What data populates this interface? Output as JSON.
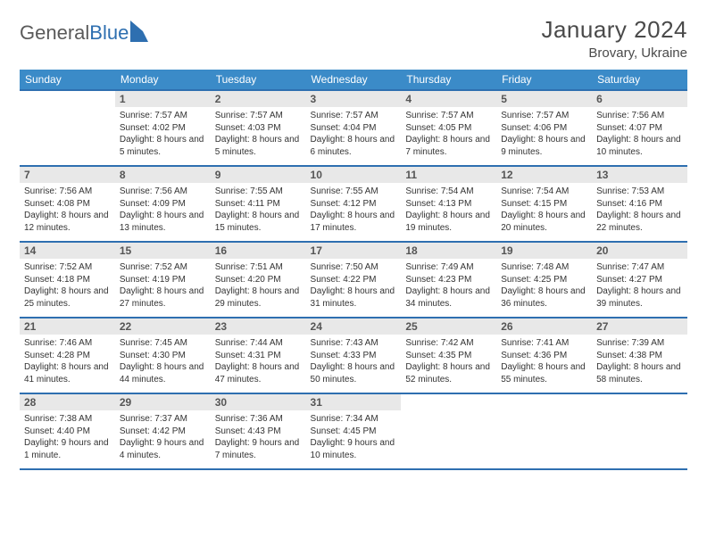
{
  "logo": {
    "text1": "General",
    "text2": "Blue"
  },
  "title": "January 2024",
  "location": "Brovary, Ukraine",
  "colors": {
    "header_bg": "#3b8bc8",
    "header_border": "#2e6fb0",
    "daynum_bg": "#e8e8e8",
    "text": "#333333"
  },
  "daysOfWeek": [
    "Sunday",
    "Monday",
    "Tuesday",
    "Wednesday",
    "Thursday",
    "Friday",
    "Saturday"
  ],
  "weeks": [
    [
      {
        "n": "",
        "sr": "",
        "ss": "",
        "dl": ""
      },
      {
        "n": "1",
        "sr": "Sunrise: 7:57 AM",
        "ss": "Sunset: 4:02 PM",
        "dl": "Daylight: 8 hours and 5 minutes."
      },
      {
        "n": "2",
        "sr": "Sunrise: 7:57 AM",
        "ss": "Sunset: 4:03 PM",
        "dl": "Daylight: 8 hours and 5 minutes."
      },
      {
        "n": "3",
        "sr": "Sunrise: 7:57 AM",
        "ss": "Sunset: 4:04 PM",
        "dl": "Daylight: 8 hours and 6 minutes."
      },
      {
        "n": "4",
        "sr": "Sunrise: 7:57 AM",
        "ss": "Sunset: 4:05 PM",
        "dl": "Daylight: 8 hours and 7 minutes."
      },
      {
        "n": "5",
        "sr": "Sunrise: 7:57 AM",
        "ss": "Sunset: 4:06 PM",
        "dl": "Daylight: 8 hours and 9 minutes."
      },
      {
        "n": "6",
        "sr": "Sunrise: 7:56 AM",
        "ss": "Sunset: 4:07 PM",
        "dl": "Daylight: 8 hours and 10 minutes."
      }
    ],
    [
      {
        "n": "7",
        "sr": "Sunrise: 7:56 AM",
        "ss": "Sunset: 4:08 PM",
        "dl": "Daylight: 8 hours and 12 minutes."
      },
      {
        "n": "8",
        "sr": "Sunrise: 7:56 AM",
        "ss": "Sunset: 4:09 PM",
        "dl": "Daylight: 8 hours and 13 minutes."
      },
      {
        "n": "9",
        "sr": "Sunrise: 7:55 AM",
        "ss": "Sunset: 4:11 PM",
        "dl": "Daylight: 8 hours and 15 minutes."
      },
      {
        "n": "10",
        "sr": "Sunrise: 7:55 AM",
        "ss": "Sunset: 4:12 PM",
        "dl": "Daylight: 8 hours and 17 minutes."
      },
      {
        "n": "11",
        "sr": "Sunrise: 7:54 AM",
        "ss": "Sunset: 4:13 PM",
        "dl": "Daylight: 8 hours and 19 minutes."
      },
      {
        "n": "12",
        "sr": "Sunrise: 7:54 AM",
        "ss": "Sunset: 4:15 PM",
        "dl": "Daylight: 8 hours and 20 minutes."
      },
      {
        "n": "13",
        "sr": "Sunrise: 7:53 AM",
        "ss": "Sunset: 4:16 PM",
        "dl": "Daylight: 8 hours and 22 minutes."
      }
    ],
    [
      {
        "n": "14",
        "sr": "Sunrise: 7:52 AM",
        "ss": "Sunset: 4:18 PM",
        "dl": "Daylight: 8 hours and 25 minutes."
      },
      {
        "n": "15",
        "sr": "Sunrise: 7:52 AM",
        "ss": "Sunset: 4:19 PM",
        "dl": "Daylight: 8 hours and 27 minutes."
      },
      {
        "n": "16",
        "sr": "Sunrise: 7:51 AM",
        "ss": "Sunset: 4:20 PM",
        "dl": "Daylight: 8 hours and 29 minutes."
      },
      {
        "n": "17",
        "sr": "Sunrise: 7:50 AM",
        "ss": "Sunset: 4:22 PM",
        "dl": "Daylight: 8 hours and 31 minutes."
      },
      {
        "n": "18",
        "sr": "Sunrise: 7:49 AM",
        "ss": "Sunset: 4:23 PM",
        "dl": "Daylight: 8 hours and 34 minutes."
      },
      {
        "n": "19",
        "sr": "Sunrise: 7:48 AM",
        "ss": "Sunset: 4:25 PM",
        "dl": "Daylight: 8 hours and 36 minutes."
      },
      {
        "n": "20",
        "sr": "Sunrise: 7:47 AM",
        "ss": "Sunset: 4:27 PM",
        "dl": "Daylight: 8 hours and 39 minutes."
      }
    ],
    [
      {
        "n": "21",
        "sr": "Sunrise: 7:46 AM",
        "ss": "Sunset: 4:28 PM",
        "dl": "Daylight: 8 hours and 41 minutes."
      },
      {
        "n": "22",
        "sr": "Sunrise: 7:45 AM",
        "ss": "Sunset: 4:30 PM",
        "dl": "Daylight: 8 hours and 44 minutes."
      },
      {
        "n": "23",
        "sr": "Sunrise: 7:44 AM",
        "ss": "Sunset: 4:31 PM",
        "dl": "Daylight: 8 hours and 47 minutes."
      },
      {
        "n": "24",
        "sr": "Sunrise: 7:43 AM",
        "ss": "Sunset: 4:33 PM",
        "dl": "Daylight: 8 hours and 50 minutes."
      },
      {
        "n": "25",
        "sr": "Sunrise: 7:42 AM",
        "ss": "Sunset: 4:35 PM",
        "dl": "Daylight: 8 hours and 52 minutes."
      },
      {
        "n": "26",
        "sr": "Sunrise: 7:41 AM",
        "ss": "Sunset: 4:36 PM",
        "dl": "Daylight: 8 hours and 55 minutes."
      },
      {
        "n": "27",
        "sr": "Sunrise: 7:39 AM",
        "ss": "Sunset: 4:38 PM",
        "dl": "Daylight: 8 hours and 58 minutes."
      }
    ],
    [
      {
        "n": "28",
        "sr": "Sunrise: 7:38 AM",
        "ss": "Sunset: 4:40 PM",
        "dl": "Daylight: 9 hours and 1 minute."
      },
      {
        "n": "29",
        "sr": "Sunrise: 7:37 AM",
        "ss": "Sunset: 4:42 PM",
        "dl": "Daylight: 9 hours and 4 minutes."
      },
      {
        "n": "30",
        "sr": "Sunrise: 7:36 AM",
        "ss": "Sunset: 4:43 PM",
        "dl": "Daylight: 9 hours and 7 minutes."
      },
      {
        "n": "31",
        "sr": "Sunrise: 7:34 AM",
        "ss": "Sunset: 4:45 PM",
        "dl": "Daylight: 9 hours and 10 minutes."
      },
      {
        "n": "",
        "sr": "",
        "ss": "",
        "dl": ""
      },
      {
        "n": "",
        "sr": "",
        "ss": "",
        "dl": ""
      },
      {
        "n": "",
        "sr": "",
        "ss": "",
        "dl": ""
      }
    ]
  ]
}
